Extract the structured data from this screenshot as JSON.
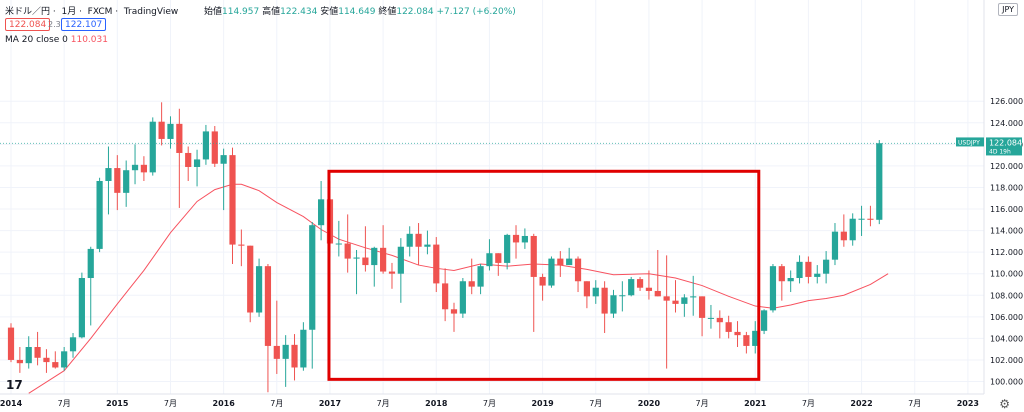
{
  "header": {
    "symbol": "米ドル／円",
    "interval": "1月",
    "source": "FXCM",
    "platform": "TradingView",
    "open_label": "始値",
    "open_value": "114.957",
    "high_label": "高値",
    "high_value": "122.434",
    "low_label": "安値",
    "low_value": "114.649",
    "close_label": "終値",
    "close_value": "122.084",
    "change": "+7.127 (+6.20%)",
    "bid": "122.084",
    "spread": "2.3",
    "ask": "122.107"
  },
  "indicator": {
    "label": "MA 20 close 0",
    "value": "110.031"
  },
  "currency_box": "JPY",
  "last_price_label": {
    "ticker": "USDJPY",
    "price": "122.084",
    "countdown": "4D 19h"
  },
  "colors": {
    "up": "#26a69a",
    "down": "#ef5350",
    "ma": "#f7525f",
    "highlight_box": "#e00000",
    "price_line": "#26a69a"
  },
  "chart_data": {
    "type": "candlestick",
    "title": "",
    "ylim": [
      99.5,
      128.5
    ],
    "y_ticks": [
      100,
      102,
      104,
      106,
      108,
      110,
      112,
      114,
      116,
      118,
      120,
      122,
      124,
      126
    ],
    "y_tick_labels": [
      "100.000",
      "102.000",
      "104.000",
      "106.000",
      "108.000",
      "110.000",
      "112.000",
      "114.000",
      "116.000",
      "118.000",
      "120.000",
      "122.000",
      "124.000",
      "126.000"
    ],
    "x_ticks": [
      {
        "label": "2014",
        "t": 0
      },
      {
        "label": "7月",
        "t": 6
      },
      {
        "label": "2015",
        "t": 12
      },
      {
        "label": "7月",
        "t": 18
      },
      {
        "label": "2016",
        "t": 24
      },
      {
        "label": "7月",
        "t": 30
      },
      {
        "label": "2017",
        "t": 36
      },
      {
        "label": "7月",
        "t": 42
      },
      {
        "label": "2018",
        "t": 48
      },
      {
        "label": "7月",
        "t": 54
      },
      {
        "label": "2019",
        "t": 60
      },
      {
        "label": "7月",
        "t": 66
      },
      {
        "label": "2020",
        "t": 72
      },
      {
        "label": "7月",
        "t": 78
      },
      {
        "label": "2021",
        "t": 84
      },
      {
        "label": "7月",
        "t": 90
      },
      {
        "label": "2022",
        "t": 96
      },
      {
        "label": "7月",
        "t": 102
      },
      {
        "label": "2023",
        "t": 108
      }
    ],
    "x_range_months": [
      0,
      110
    ],
    "months": [
      "2014-01",
      "2014-02",
      "2014-03",
      "2014-04",
      "2014-05",
      "2014-06",
      "2014-07",
      "2014-08",
      "2014-09",
      "2014-10",
      "2014-11",
      "2014-12",
      "2015-01",
      "2015-02",
      "2015-03",
      "2015-04",
      "2015-05",
      "2015-06",
      "2015-07",
      "2015-08",
      "2015-09",
      "2015-10",
      "2015-11",
      "2015-12",
      "2016-01",
      "2016-02",
      "2016-03",
      "2016-04",
      "2016-05",
      "2016-06",
      "2016-07",
      "2016-08",
      "2016-09",
      "2016-10",
      "2016-11",
      "2016-12",
      "2017-01",
      "2017-02",
      "2017-03",
      "2017-04",
      "2017-05",
      "2017-06",
      "2017-07",
      "2017-08",
      "2017-09",
      "2017-10",
      "2017-11",
      "2017-12",
      "2018-01",
      "2018-02",
      "2018-03",
      "2018-04",
      "2018-05",
      "2018-06",
      "2018-07",
      "2018-08",
      "2018-09",
      "2018-10",
      "2018-11",
      "2018-12",
      "2019-01",
      "2019-02",
      "2019-03",
      "2019-04",
      "2019-05",
      "2019-06",
      "2019-07",
      "2019-08",
      "2019-09",
      "2019-10",
      "2019-11",
      "2019-12",
      "2020-01",
      "2020-02",
      "2020-03",
      "2020-04",
      "2020-05",
      "2020-06",
      "2020-07",
      "2020-08",
      "2020-09",
      "2020-10",
      "2020-11",
      "2020-12",
      "2021-01",
      "2021-02",
      "2021-03",
      "2021-04",
      "2021-05",
      "2021-06",
      "2021-07",
      "2021-08",
      "2021-09",
      "2021-10",
      "2021-11",
      "2021-12",
      "2022-01",
      "2022-02",
      "2022-03"
    ],
    "ohlc": [
      [
        105.0,
        105.4,
        101.8,
        102.0
      ],
      [
        102.0,
        103.2,
        100.8,
        101.7
      ],
      [
        101.7,
        104.2,
        101.2,
        103.2
      ],
      [
        103.2,
        104.6,
        101.5,
        102.2
      ],
      [
        102.2,
        103.0,
        100.8,
        101.8
      ],
      [
        101.8,
        102.8,
        101.2,
        101.3
      ],
      [
        101.3,
        103.2,
        101.0,
        102.8
      ],
      [
        102.8,
        104.5,
        102.2,
        104.1
      ],
      [
        104.1,
        110.1,
        104.0,
        109.6
      ],
      [
        109.6,
        112.5,
        105.2,
        112.3
      ],
      [
        112.3,
        118.9,
        112.0,
        118.6
      ],
      [
        118.6,
        121.8,
        115.5,
        119.8
      ],
      [
        119.8,
        121.0,
        115.9,
        117.5
      ],
      [
        117.5,
        120.5,
        116.2,
        119.6
      ],
      [
        119.6,
        122.0,
        118.3,
        120.1
      ],
      [
        120.1,
        120.9,
        118.6,
        119.4
      ],
      [
        119.4,
        124.5,
        119.1,
        124.1
      ],
      [
        124.1,
        125.9,
        121.9,
        122.5
      ],
      [
        122.5,
        124.6,
        121.6,
        123.9
      ],
      [
        123.9,
        125.3,
        116.1,
        121.2
      ],
      [
        121.2,
        121.8,
        118.6,
        119.9
      ],
      [
        119.9,
        121.5,
        118.1,
        120.6
      ],
      [
        120.6,
        123.8,
        120.1,
        123.2
      ],
      [
        123.2,
        123.7,
        119.9,
        120.2
      ],
      [
        120.2,
        121.6,
        115.9,
        121.0
      ],
      [
        121.0,
        121.7,
        110.9,
        112.7
      ],
      [
        112.7,
        114.1,
        110.7,
        112.6
      ],
      [
        112.6,
        112.6,
        105.5,
        106.4
      ],
      [
        106.4,
        111.4,
        106.0,
        110.7
      ],
      [
        110.7,
        110.9,
        99.0,
        103.3
      ],
      [
        103.3,
        107.5,
        100.7,
        102.1
      ],
      [
        102.1,
        104.3,
        99.5,
        103.4
      ],
      [
        103.4,
        104.4,
        100.1,
        101.3
      ],
      [
        101.3,
        105.5,
        101.0,
        104.8
      ],
      [
        104.8,
        114.8,
        101.2,
        114.5
      ],
      [
        114.5,
        118.6,
        113.1,
        116.9
      ],
      [
        116.9,
        118.6,
        111.6,
        112.8
      ],
      [
        112.8,
        114.9,
        111.6,
        112.8
      ],
      [
        112.8,
        115.5,
        110.1,
        111.4
      ],
      [
        111.4,
        112.2,
        108.1,
        111.5
      ],
      [
        111.5,
        114.4,
        110.2,
        110.8
      ],
      [
        110.8,
        112.5,
        108.8,
        112.4
      ],
      [
        112.4,
        114.5,
        110.0,
        110.2
      ],
      [
        110.2,
        111.0,
        108.6,
        110.0
      ],
      [
        110.0,
        113.3,
        107.3,
        112.5
      ],
      [
        112.5,
        114.4,
        111.6,
        113.7
      ],
      [
        113.7,
        114.7,
        110.8,
        112.5
      ],
      [
        112.5,
        114.0,
        111.8,
        112.7
      ],
      [
        112.7,
        113.4,
        108.3,
        109.1
      ],
      [
        109.1,
        110.5,
        105.6,
        106.7
      ],
      [
        106.7,
        107.3,
        104.6,
        106.3
      ],
      [
        106.3,
        109.6,
        105.9,
        109.3
      ],
      [
        109.3,
        111.4,
        108.1,
        108.8
      ],
      [
        108.8,
        110.9,
        108.1,
        110.7
      ],
      [
        110.7,
        113.2,
        110.3,
        111.9
      ],
      [
        111.9,
        111.9,
        109.8,
        111.0
      ],
      [
        111.0,
        113.7,
        110.4,
        113.6
      ],
      [
        113.6,
        114.5,
        111.4,
        112.9
      ],
      [
        112.9,
        114.2,
        112.3,
        113.5
      ],
      [
        113.5,
        113.7,
        104.6,
        109.7
      ],
      [
        109.7,
        110.0,
        107.5,
        108.9
      ],
      [
        108.9,
        111.6,
        108.7,
        111.4
      ],
      [
        111.4,
        112.1,
        109.7,
        110.8
      ],
      [
        110.8,
        112.4,
        110.8,
        111.4
      ],
      [
        111.4,
        111.6,
        108.3,
        109.3
      ],
      [
        109.3,
        109.3,
        106.8,
        107.9
      ],
      [
        107.9,
        109.4,
        107.2,
        108.7
      ],
      [
        108.7,
        109.3,
        104.5,
        106.3
      ],
      [
        106.3,
        108.5,
        105.9,
        108.0
      ],
      [
        108.0,
        109.3,
        106.5,
        108.0
      ],
      [
        108.0,
        109.7,
        107.9,
        109.5
      ],
      [
        109.5,
        109.7,
        108.4,
        108.7
      ],
      [
        108.7,
        110.3,
        107.6,
        108.4
      ],
      [
        108.4,
        112.2,
        107.9,
        107.9
      ],
      [
        107.9,
        111.7,
        101.2,
        107.5
      ],
      [
        107.5,
        109.4,
        106.4,
        107.2
      ],
      [
        107.2,
        108.1,
        106.0,
        107.8
      ],
      [
        107.8,
        109.8,
        106.1,
        107.9
      ],
      [
        107.9,
        107.9,
        104.2,
        105.9
      ],
      [
        105.9,
        107.1,
        104.9,
        105.9
      ],
      [
        105.9,
        106.6,
        104.0,
        105.5
      ],
      [
        105.5,
        106.1,
        104.0,
        104.6
      ],
      [
        104.6,
        105.6,
        103.2,
        104.3
      ],
      [
        104.3,
        104.6,
        102.6,
        103.3
      ],
      [
        103.3,
        105.6,
        102.6,
        104.7
      ],
      [
        104.7,
        106.7,
        104.4,
        106.6
      ],
      [
        106.6,
        110.9,
        106.4,
        110.7
      ],
      [
        110.7,
        110.9,
        107.5,
        109.3
      ],
      [
        109.3,
        110.3,
        108.3,
        109.6
      ],
      [
        109.6,
        111.7,
        109.1,
        111.1
      ],
      [
        111.1,
        111.6,
        109.1,
        109.7
      ],
      [
        109.7,
        110.8,
        109.1,
        110.0
      ],
      [
        110.0,
        112.1,
        109.1,
        111.3
      ],
      [
        111.3,
        114.7,
        110.8,
        113.9
      ],
      [
        113.9,
        115.5,
        112.5,
        113.1
      ],
      [
        113.1,
        115.6,
        112.6,
        115.1
      ],
      [
        115.1,
        116.3,
        113.5,
        115.1
      ],
      [
        115.1,
        116.3,
        114.4,
        115.0
      ],
      [
        115.0,
        122.4,
        114.6,
        122.1
      ]
    ],
    "ma20": [
      [
        2.0,
        98.9
      ],
      [
        6.0,
        101.0
      ],
      [
        9.0,
        104.0
      ],
      [
        12.0,
        107.2
      ],
      [
        15.0,
        110.3
      ],
      [
        18.0,
        113.8
      ],
      [
        21.0,
        116.7
      ],
      [
        23.0,
        117.8
      ],
      [
        25.0,
        118.3
      ],
      [
        26.0,
        118.3
      ],
      [
        28.0,
        117.7
      ],
      [
        30.0,
        116.6
      ],
      [
        33.0,
        115.3
      ],
      [
        35.0,
        114.1
      ],
      [
        37.0,
        113.2
      ],
      [
        40.0,
        112.4
      ],
      [
        43.0,
        111.7
      ],
      [
        46.0,
        110.8
      ],
      [
        48.0,
        110.5
      ],
      [
        50.0,
        110.3
      ],
      [
        53.0,
        110.9
      ],
      [
        56.0,
        110.7
      ],
      [
        59.0,
        110.9
      ],
      [
        62.0,
        110.8
      ],
      [
        65.0,
        110.4
      ],
      [
        68.0,
        109.9
      ],
      [
        72.0,
        110.0
      ],
      [
        75.0,
        109.6
      ],
      [
        78.0,
        108.9
      ],
      [
        81.0,
        107.9
      ],
      [
        84.0,
        107.0
      ],
      [
        86.0,
        106.8
      ],
      [
        88.0,
        107.1
      ],
      [
        90.0,
        107.5
      ],
      [
        92.0,
        107.7
      ],
      [
        94.0,
        108.0
      ],
      [
        97.0,
        109.0
      ],
      [
        99.0,
        110.0
      ]
    ],
    "current_price": 122.084,
    "price_line_label": "122.084",
    "highlight_range": {
      "from_month": 36,
      "to_month": 84.4,
      "low": 100.2,
      "high": 119.5
    }
  }
}
